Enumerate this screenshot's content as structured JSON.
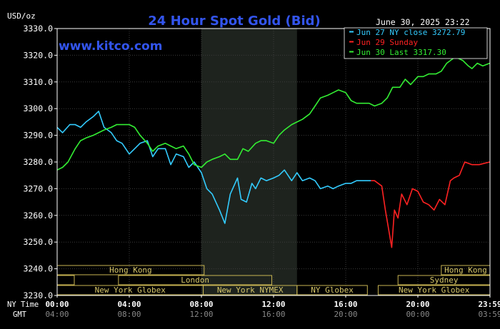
{
  "chart_data": {
    "type": "line",
    "title": "24 Hour Spot Gold (Bid)",
    "unit_label": "USD/oz",
    "watermark": "www.kitco.com",
    "timestamp": "June 30, 2025 23:22",
    "ylim": [
      3230,
      3330
    ],
    "y_ticks": [
      "3330.0",
      "3320.0",
      "3310.0",
      "3300.0",
      "3290.0",
      "3280.0",
      "3270.0",
      "3260.0",
      "3250.0",
      "3240.0",
      "3230.0"
    ],
    "x_row_label_ny": "NY Time",
    "x_row_label_gmt": "GMT",
    "x_ticks_ny": [
      "00:00",
      "04:00",
      "08:00",
      "12:00",
      "16:00",
      "20:00",
      "23:59"
    ],
    "x_ticks_gmt": [
      "04:00",
      "08:00",
      "12:00",
      "16:00",
      "20:00",
      "00:00",
      "03:59"
    ],
    "x_tick_hours": [
      0,
      4,
      8,
      12,
      16,
      20,
      24
    ],
    "xlim_hours": [
      0,
      24
    ],
    "shaded_hours": [
      8,
      13.3
    ],
    "grid": true,
    "legend_position": "top-right",
    "legend": [
      {
        "label": "Jun 27 NY close 3272.79",
        "color": "#33ccff"
      },
      {
        "label": "Jun 29 Sunday",
        "color": "#ff2222"
      },
      {
        "label": "Jun 30 Last 3317.30",
        "color": "#33ee33"
      }
    ],
    "series": [
      {
        "name": "Jun 27 NY close 3272.79",
        "color": "#33ccff",
        "x": [
          0,
          0.3,
          0.7,
          1,
          1.3,
          1.6,
          2,
          2.3,
          2.6,
          3,
          3.3,
          3.6,
          4,
          4.3,
          4.6,
          5,
          5.3,
          5.6,
          6,
          6.3,
          6.6,
          7,
          7.3,
          7.6,
          8,
          8.3,
          8.6,
          9,
          9.3,
          9.6,
          10,
          10.2,
          10.5,
          10.8,
          11,
          11.3,
          11.6,
          12,
          12.3,
          12.6,
          13,
          13.3,
          13.6,
          14,
          14.3,
          14.6,
          15,
          15.3,
          15.6,
          16,
          16.3,
          16.6,
          17,
          17.4
        ],
        "y": [
          3293,
          3291,
          3294,
          3294,
          3293,
          3295,
          3297,
          3299,
          3293,
          3291,
          3288,
          3287,
          3283,
          3285,
          3287,
          3288,
          3282,
          3285,
          3285,
          3279,
          3283,
          3282,
          3278,
          3280,
          3276,
          3270,
          3268,
          3262,
          3257,
          3268,
          3274,
          3266,
          3265,
          3272,
          3270,
          3274,
          3273,
          3274,
          3275,
          3277,
          3273,
          3276,
          3273,
          3274,
          3273,
          3270,
          3271,
          3270,
          3271,
          3272,
          3272,
          3273,
          3273,
          3273
        ]
      },
      {
        "name": "Jun 29 Sunday",
        "color": "#ff2222",
        "x": [
          17.4,
          17.6,
          18,
          18.2,
          18.4,
          18.55,
          18.7,
          18.9,
          19.1,
          19.4,
          19.7,
          20,
          20.3,
          20.6,
          20.9,
          21.2,
          21.5,
          21.8,
          22,
          22.3,
          22.6,
          23,
          23.4,
          23.98
        ],
        "y": [
          3273,
          3273,
          3271,
          3262,
          3254,
          3248,
          3262,
          3259,
          3268,
          3264,
          3270,
          3269,
          3265,
          3264,
          3262,
          3266,
          3264,
          3273,
          3274,
          3275,
          3280,
          3279,
          3279,
          3280
        ]
      },
      {
        "name": "Jun 30 Last 3317.30",
        "color": "#33ee33",
        "x": [
          0,
          0.3,
          0.6,
          1,
          1.3,
          1.6,
          2,
          2.3,
          2.6,
          3,
          3.3,
          3.6,
          4,
          4.3,
          4.6,
          5,
          5.3,
          5.6,
          6,
          6.3,
          6.6,
          7,
          7.3,
          7.6,
          8,
          8.3,
          8.6,
          9,
          9.3,
          9.6,
          10,
          10.3,
          10.6,
          11,
          11.3,
          11.6,
          12,
          12.3,
          12.6,
          13,
          13.3,
          13.6,
          14,
          14.3,
          14.6,
          15,
          15.3,
          15.6,
          16,
          16.3,
          16.6,
          17,
          17.3,
          17.6,
          18,
          18.3,
          18.6,
          19,
          19.3,
          19.6,
          20,
          20.3,
          20.6,
          21,
          21.3,
          21.6,
          22,
          22.2,
          22.5,
          22.8,
          23,
          23.3,
          23.6,
          23.98
        ],
        "y": [
          3277,
          3278,
          3280,
          3285,
          3288,
          3289,
          3290,
          3291,
          3292,
          3293,
          3294,
          3294,
          3294,
          3293,
          3290,
          3287,
          3284,
          3286,
          3287,
          3286,
          3285,
          3286,
          3283,
          3279,
          3278,
          3280,
          3281,
          3282,
          3283,
          3281,
          3281,
          3285,
          3284,
          3287,
          3288,
          3288,
          3287,
          3290,
          3292,
          3294,
          3295,
          3296,
          3298,
          3301,
          3304,
          3305,
          3306,
          3307,
          3306,
          3303,
          3302,
          3302,
          3302,
          3301,
          3302,
          3304,
          3308,
          3308,
          3311,
          3309,
          3312,
          3312,
          3313,
          3313,
          3314,
          3317,
          3319,
          3319,
          3318,
          3316,
          3315,
          3317,
          3316,
          3317
        ]
      }
    ]
  },
  "sessions": [
    {
      "label": "Hong Kong",
      "start": 0,
      "end": 8.15,
      "row": 0
    },
    {
      "label": "Hong Kong",
      "start": 21.3,
      "end": 24,
      "row": 0
    },
    {
      "label": "London",
      "start": 3.4,
      "end": 11.9,
      "row": 1
    },
    {
      "label": "",
      "start": 0,
      "end": 0.95,
      "row": 1
    },
    {
      "label": "Sydney",
      "start": 18.9,
      "end": 24,
      "row": 1
    },
    {
      "label": "New York Globex",
      "start": 0,
      "end": 8.1,
      "row": 2
    },
    {
      "label": "New York NYMEX",
      "start": 8.1,
      "end": 13.3,
      "row": 2
    },
    {
      "label": "NY Globex",
      "start": 13.3,
      "end": 17.2,
      "row": 2
    },
    {
      "label": "New York Globex",
      "start": 17.8,
      "end": 24,
      "row": 2
    }
  ],
  "colors": {
    "background": "#000000",
    "frame": "#ffffff",
    "grid": "#3c3c3c",
    "shade": "#1e231e",
    "title": "#3355ee",
    "tick_text": "#ffffff",
    "gmt_text": "#888888",
    "session_text": "#d8c86a",
    "session_border": "#c8b452"
  }
}
